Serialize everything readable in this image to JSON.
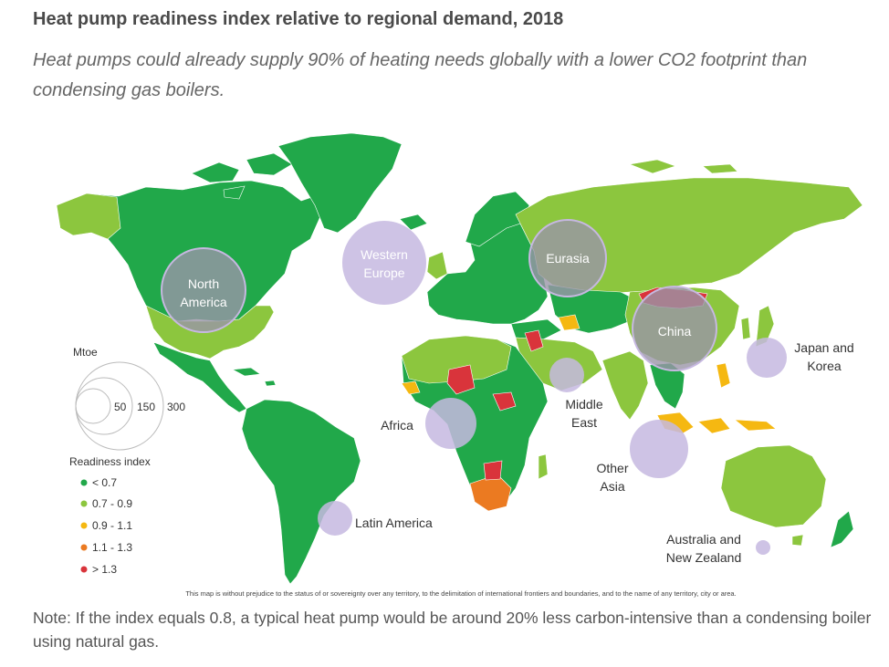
{
  "title": "Heat pump readiness index relative to regional demand, 2018",
  "subtitle": "Heat pumps could already supply 90% of heating needs globally with a lower CO2 footprint than condensing gas boilers.",
  "colors": {
    "lt_07": "#21a84a",
    "r07_09": "#8cc63e",
    "r09_11": "#f5b811",
    "r11_13": "#eb7a21",
    "gt_13": "#d9343b",
    "bubble": "#c6b8e0",
    "bubble_dark": "#9a95a8",
    "water": "#ffffff"
  },
  "regions": [
    {
      "key": "north_america",
      "label_line1": "North",
      "label_line2": "America"
    },
    {
      "key": "western_europe",
      "label_line1": "Western",
      "label_line2": "Europe"
    },
    {
      "key": "eurasia",
      "label_line1": "Eurasia",
      "label_line2": ""
    },
    {
      "key": "china",
      "label_line1": "China",
      "label_line2": ""
    },
    {
      "key": "japan_korea",
      "label_line1": "Japan and",
      "label_line2": "Korea"
    },
    {
      "key": "middle_east",
      "label_line1": "Middle",
      "label_line2": "East"
    },
    {
      "key": "africa",
      "label_line1": "Africa",
      "label_line2": ""
    },
    {
      "key": "other_asia",
      "label_line1": "Other",
      "label_line2": "Asia"
    },
    {
      "key": "latin_america",
      "label_line1": "Latin America",
      "label_line2": ""
    },
    {
      "key": "australia_nz",
      "label_line1": "Australia and",
      "label_line2": "New Zealand"
    }
  ],
  "legend": {
    "size_title": "Mtoe",
    "size_values": [
      "50",
      "150",
      "300"
    ],
    "index_title": "Readiness index",
    "items": [
      {
        "label": "< 0.7",
        "color": "#21a84a"
      },
      {
        "label": "0.7 - 0.9",
        "color": "#8cc63e"
      },
      {
        "label": "0.9 - 1.1",
        "color": "#f5b811"
      },
      {
        "label": "1.1 - 1.3",
        "color": "#eb7a21"
      },
      {
        "label": "> 1.3",
        "color": "#d9343b"
      }
    ]
  },
  "disclaimer": "This map is without prejudice to the status of or sovereignty over any territory, to the delimitation of international frontiers and boundaries, and to the name of any territory, city or area.",
  "note": "Note: If the index equals 0.8, a typical heat pump would be around 20% less carbon-intensive than a condensing boiler using natural gas."
}
